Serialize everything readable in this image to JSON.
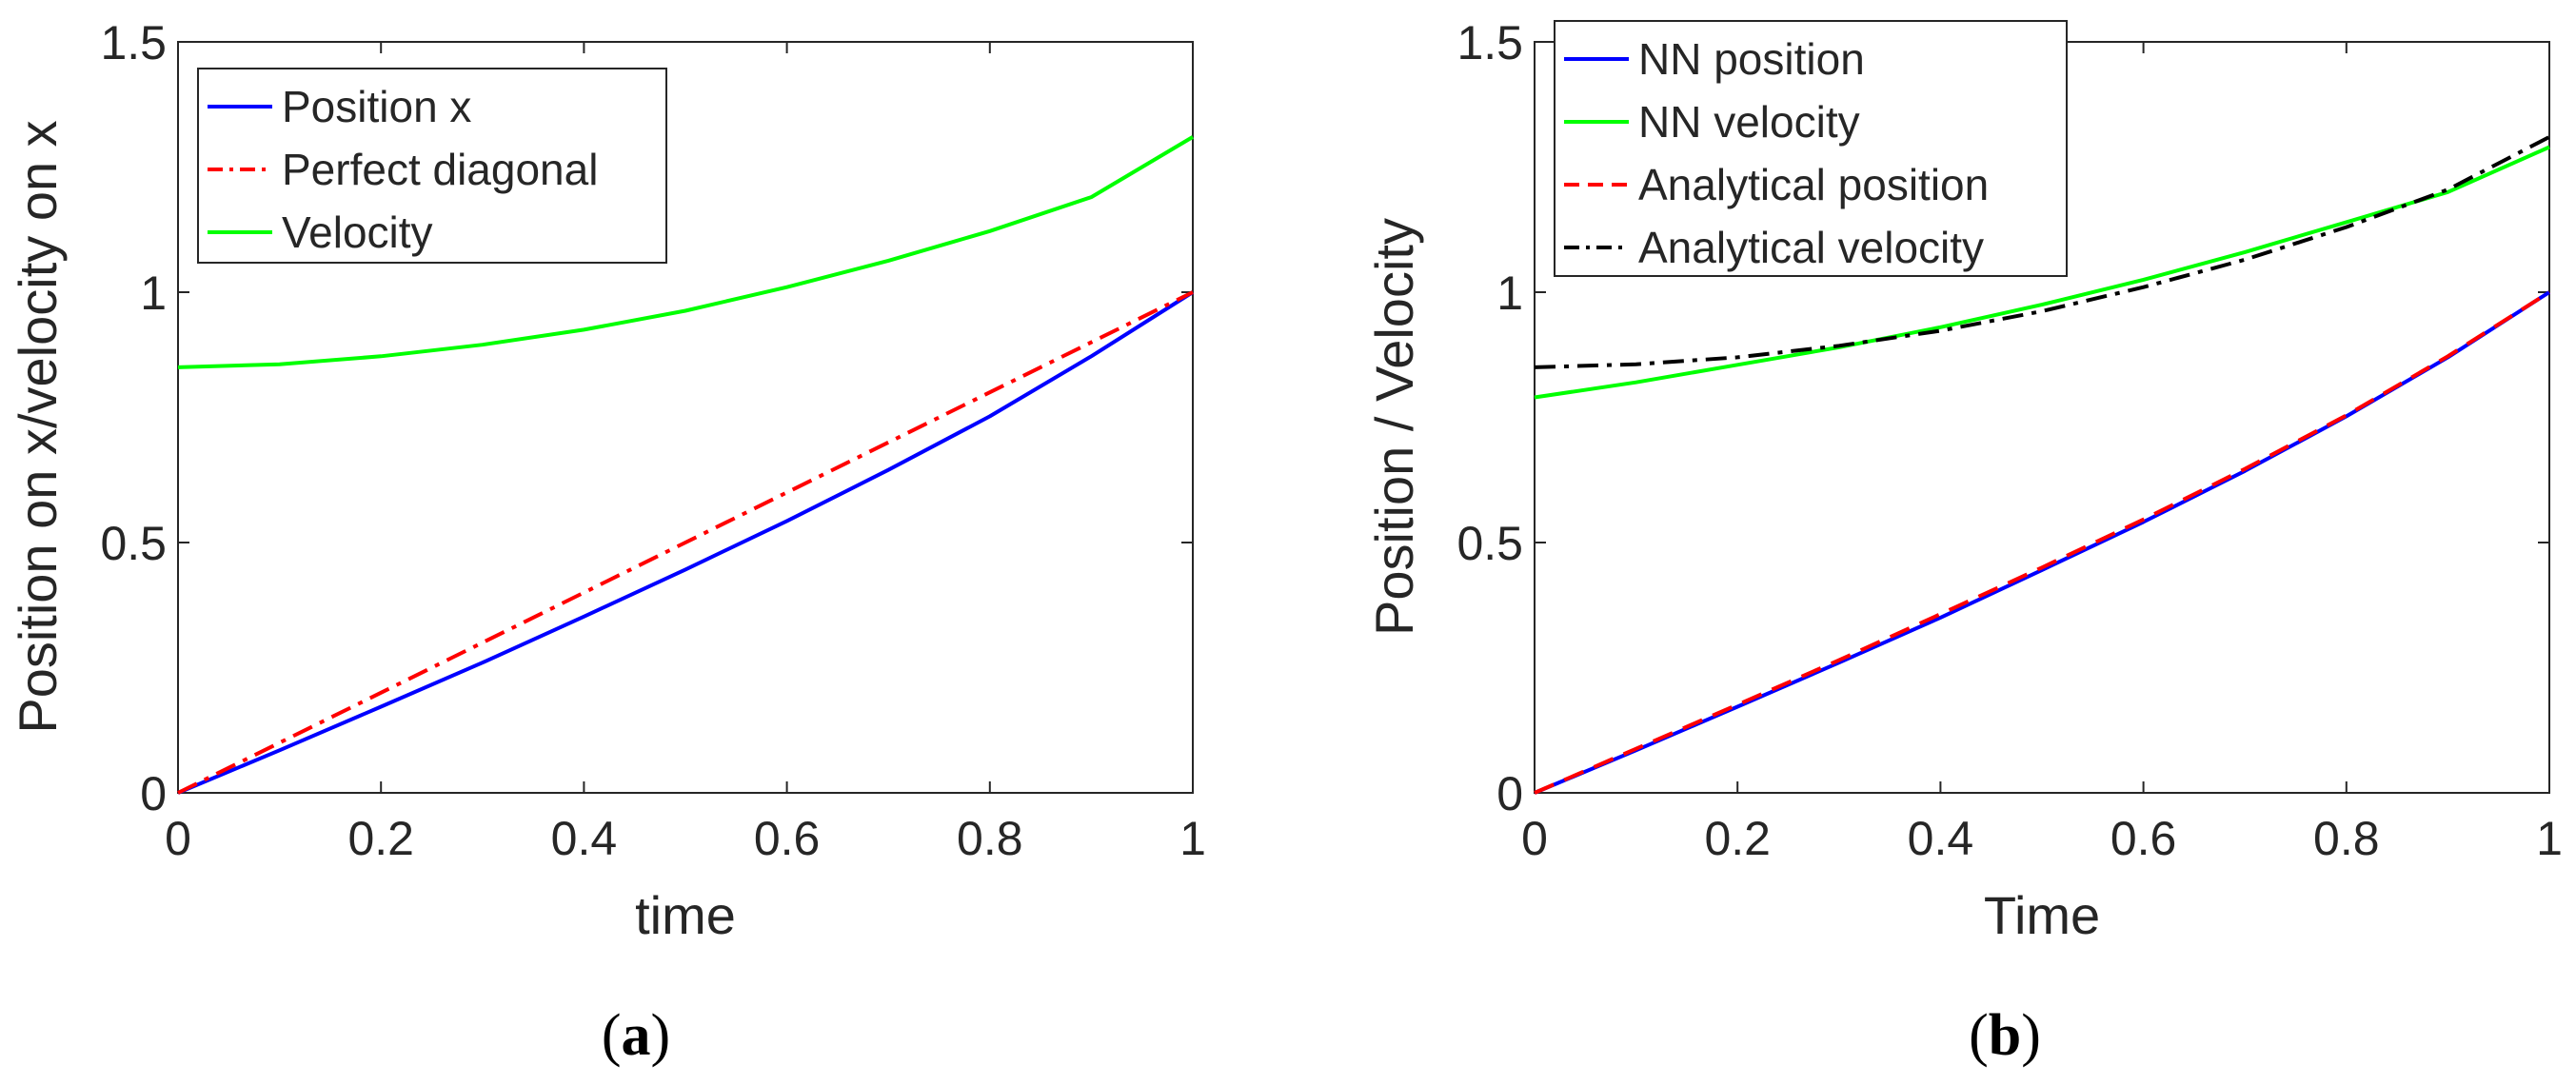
{
  "chart_data": [
    {
      "type": "line",
      "panel": "a",
      "caption_letter": "a",
      "title": "",
      "xlabel": "time",
      "ylabel": "Position on x/velocity on x",
      "xlim": [
        0,
        1
      ],
      "ylim": [
        0,
        1.5
      ],
      "xticks": [
        "0",
        "0.2",
        "0.4",
        "0.6",
        "0.8",
        "1"
      ],
      "yticks": [
        "0",
        "0.5",
        "1",
        "1.5"
      ],
      "legend_position": "top-left",
      "series": [
        {
          "name": "Position x",
          "color": "#0000ff",
          "style": "solid",
          "x": [
            0,
            0.1,
            0.2,
            0.3,
            0.4,
            0.5,
            0.6,
            0.7,
            0.8,
            0.9,
            1.0
          ],
          "y": [
            0,
            0.085,
            0.172,
            0.26,
            0.352,
            0.446,
            0.543,
            0.645,
            0.752,
            0.872,
            1.0
          ]
        },
        {
          "name": "Perfect diagonal",
          "color": "#ff0000",
          "style": "dashdot",
          "x": [
            0,
            1
          ],
          "y": [
            0,
            1
          ]
        },
        {
          "name": "Velocity",
          "color": "#00ff00",
          "style": "solid",
          "x": [
            0,
            0.1,
            0.2,
            0.3,
            0.4,
            0.5,
            0.6,
            0.7,
            0.8,
            0.9,
            1.0
          ],
          "y": [
            0.85,
            0.856,
            0.872,
            0.895,
            0.925,
            0.963,
            1.01,
            1.063,
            1.122,
            1.19,
            1.31
          ]
        }
      ]
    },
    {
      "type": "line",
      "panel": "b",
      "caption_letter": "b",
      "title": "",
      "xlabel": "Time",
      "ylabel": "Position / Velocity",
      "xlim": [
        0,
        1
      ],
      "ylim": [
        0,
        1.5
      ],
      "xticks": [
        "0",
        "0.2",
        "0.4",
        "0.6",
        "0.8",
        "1"
      ],
      "yticks": [
        "0",
        "0.5",
        "1",
        "1.5"
      ],
      "legend_position": "top-left",
      "series": [
        {
          "name": "NN position",
          "color": "#0000ff",
          "style": "solid",
          "x": [
            0,
            0.1,
            0.2,
            0.3,
            0.4,
            0.5,
            0.6,
            0.7,
            0.8,
            0.9,
            1.0
          ],
          "y": [
            0,
            0.085,
            0.172,
            0.26,
            0.35,
            0.445,
            0.541,
            0.643,
            0.752,
            0.87,
            1.0
          ]
        },
        {
          "name": "NN velocity",
          "color": "#00ff00",
          "style": "solid",
          "x": [
            0,
            0.1,
            0.2,
            0.3,
            0.4,
            0.5,
            0.6,
            0.7,
            0.8,
            0.9,
            1.0
          ],
          "y": [
            0.79,
            0.82,
            0.855,
            0.89,
            0.93,
            0.975,
            1.025,
            1.08,
            1.14,
            1.2,
            1.29
          ]
        },
        {
          "name": "Analytical position",
          "color": "#ff0000",
          "style": "dashed",
          "x": [
            0,
            0.1,
            0.2,
            0.3,
            0.4,
            0.5,
            0.6,
            0.7,
            0.8,
            0.9,
            1.0
          ],
          "y": [
            0,
            0.088,
            0.176,
            0.265,
            0.357,
            0.45,
            0.546,
            0.647,
            0.754,
            0.872,
            1.0
          ]
        },
        {
          "name": "Analytical velocity",
          "color": "#000000",
          "style": "dashdot",
          "x": [
            0,
            0.1,
            0.2,
            0.3,
            0.4,
            0.5,
            0.6,
            0.7,
            0.8,
            0.9,
            1.0
          ],
          "y": [
            0.85,
            0.856,
            0.87,
            0.893,
            0.923,
            0.962,
            1.01,
            1.065,
            1.13,
            1.205,
            1.31
          ]
        }
      ]
    }
  ]
}
